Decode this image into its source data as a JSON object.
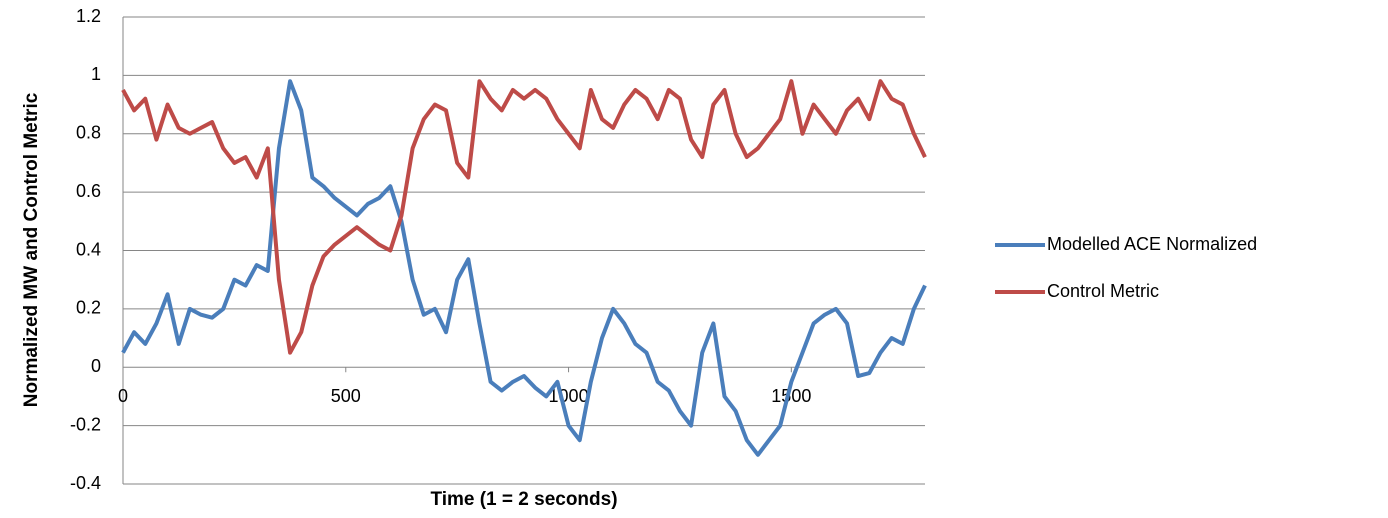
{
  "chart_data": {
    "type": "line",
    "x_label": "Time (1 = 2 seconds)",
    "y_label": "Normalized MW and Control Metric",
    "x": [
      0,
      25,
      50,
      75,
      100,
      125,
      150,
      175,
      200,
      225,
      250,
      275,
      300,
      325,
      350,
      375,
      400,
      425,
      450,
      475,
      500,
      525,
      550,
      575,
      600,
      625,
      650,
      675,
      700,
      725,
      750,
      775,
      800,
      825,
      850,
      875,
      900,
      925,
      950,
      975,
      1000,
      1025,
      1050,
      1075,
      1100,
      1125,
      1150,
      1175,
      1200,
      1225,
      1250,
      1275,
      1300,
      1325,
      1350,
      1375,
      1400,
      1425,
      1450,
      1475,
      1500,
      1525,
      1550,
      1575,
      1600,
      1625,
      1650,
      1675,
      1700,
      1725,
      1750,
      1775,
      1800
    ],
    "series": [
      {
        "name": "Modelled ACE Normalized",
        "color": "#4a7ebb",
        "values": [
          0.05,
          0.12,
          0.08,
          0.15,
          0.25,
          0.08,
          0.2,
          0.18,
          0.17,
          0.2,
          0.3,
          0.28,
          0.35,
          0.33,
          0.75,
          0.98,
          0.88,
          0.65,
          0.62,
          0.58,
          0.55,
          0.52,
          0.56,
          0.58,
          0.62,
          0.5,
          0.3,
          0.18,
          0.2,
          0.12,
          0.3,
          0.37,
          0.15,
          -0.05,
          -0.08,
          -0.05,
          -0.03,
          -0.07,
          -0.1,
          -0.05,
          -0.2,
          -0.25,
          -0.05,
          0.1,
          0.2,
          0.15,
          0.08,
          0.05,
          -0.05,
          -0.08,
          -0.15,
          -0.2,
          0.05,
          0.15,
          -0.1,
          -0.15,
          -0.25,
          -0.3,
          -0.25,
          -0.2,
          -0.05,
          0.05,
          0.15,
          0.18,
          0.2,
          0.15,
          -0.03,
          -0.02,
          0.05,
          0.1,
          0.08,
          0.2,
          0.28
        ]
      },
      {
        "name": "Control Metric",
        "color": "#be4b48",
        "values": [
          0.95,
          0.88,
          0.92,
          0.78,
          0.9,
          0.82,
          0.8,
          0.82,
          0.84,
          0.75,
          0.7,
          0.72,
          0.65,
          0.75,
          0.3,
          0.05,
          0.12,
          0.28,
          0.38,
          0.42,
          0.45,
          0.48,
          0.45,
          0.42,
          0.4,
          0.52,
          0.75,
          0.85,
          0.9,
          0.88,
          0.7,
          0.65,
          0.98,
          0.92,
          0.88,
          0.95,
          0.92,
          0.95,
          0.92,
          0.85,
          0.8,
          0.75,
          0.95,
          0.85,
          0.82,
          0.9,
          0.95,
          0.92,
          0.85,
          0.95,
          0.92,
          0.78,
          0.72,
          0.9,
          0.95,
          0.8,
          0.72,
          0.75,
          0.8,
          0.85,
          0.98,
          0.8,
          0.9,
          0.85,
          0.8,
          0.88,
          0.92,
          0.85,
          0.98,
          0.92,
          0.9,
          0.8,
          0.72
        ]
      }
    ],
    "xlim": [
      0,
      1800
    ],
    "xticks": [
      0,
      500,
      1000,
      1500
    ],
    "ylim": [
      -0.4,
      1.2
    ],
    "yticks": [
      -0.4,
      -0.2,
      0,
      0.2,
      0.4,
      0.6,
      0.8,
      1,
      1.2
    ],
    "grid": true,
    "legend": "right"
  }
}
